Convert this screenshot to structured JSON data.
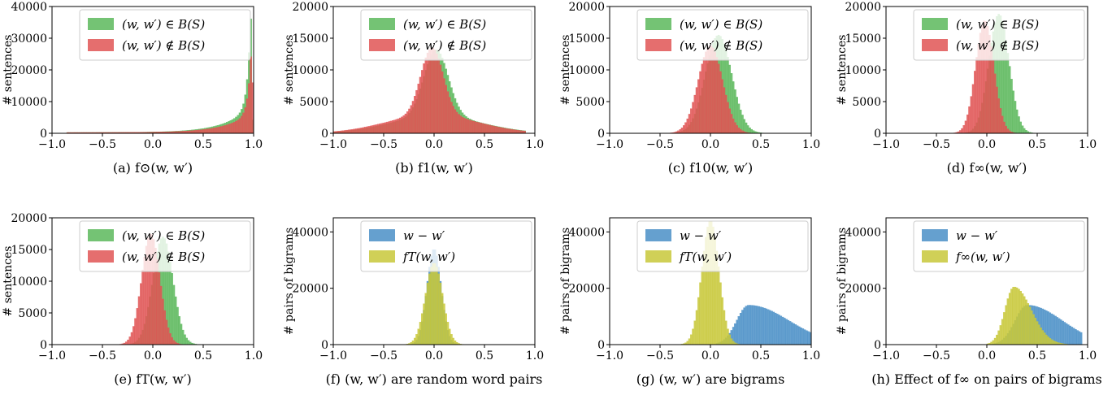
{
  "figure": {
    "panels": [
      {
        "id": "a",
        "caption": "(a) f⊙(w, w′)",
        "ylabel": "# sentences",
        "yticks": [
          0,
          10000,
          20000,
          30000,
          40000
        ],
        "ylim": [
          0,
          40000
        ],
        "xticks": [
          "−1.0",
          "−0.5",
          "0.0",
          "0.5",
          "1.0"
        ],
        "xlim": [
          -1,
          1
        ],
        "series": [
          {
            "name": "(w, w′) ∈ B(S)",
            "color": "#5cb85c",
            "kind": "skew",
            "mode": 0.97,
            "peak": 37500,
            "width": 0.3,
            "min": -0.85,
            "max": 1.0
          },
          {
            "name": "(w, w′) ∉ B(S)",
            "color": "#e05555",
            "kind": "skew",
            "mode": 0.98,
            "peak": 29000,
            "width": 0.3,
            "min": -0.85,
            "max": 1.0
          }
        ]
      },
      {
        "id": "b",
        "caption": "(b) f1(w, w′)",
        "ylabel": "# sentences",
        "yticks": [
          0,
          5000,
          10000,
          15000,
          20000
        ],
        "ylim": [
          0,
          20000
        ],
        "xticks": [
          "−1.0",
          "−0.5",
          "0.0",
          "0.5",
          "1.0"
        ],
        "xlim": [
          -1,
          1
        ],
        "series": [
          {
            "name": "(w, w′) ∈ B(S)",
            "color": "#5cb85c",
            "kind": "peakwide",
            "center": 0.02,
            "peak": 13200,
            "width": 0.12,
            "shoulder": 2700,
            "swidth": 0.45,
            "min": -1.0,
            "max": 0.9
          },
          {
            "name": "(w, w′) ∉ B(S)",
            "color": "#e05555",
            "kind": "peakwide",
            "center": -0.02,
            "peak": 13500,
            "width": 0.11,
            "shoulder": 2900,
            "swidth": 0.45,
            "min": -1.0,
            "max": 0.9
          }
        ]
      },
      {
        "id": "c",
        "caption": "(c) f10(w, w′)",
        "ylabel": "# sentences",
        "yticks": [
          0,
          5000,
          10000,
          15000,
          20000
        ],
        "ylim": [
          0,
          20000
        ],
        "xticks": [
          "−1.0",
          "−0.5",
          "0.0",
          "0.5",
          "1.0"
        ],
        "xlim": [
          -1,
          1
        ],
        "series": [
          {
            "name": "(w, w′) ∈ B(S)",
            "color": "#5cb85c",
            "kind": "gauss",
            "center": 0.08,
            "peak": 15500,
            "width": 0.13,
            "min": -0.5,
            "max": 0.55
          },
          {
            "name": "(w, w′) ∉ B(S)",
            "color": "#e05555",
            "kind": "gauss",
            "center": 0.0,
            "peak": 13800,
            "width": 0.12,
            "min": -0.5,
            "max": 0.55
          }
        ]
      },
      {
        "id": "d",
        "caption": "(d) f∞(w, w′)",
        "ylabel": "# sentences",
        "yticks": [
          0,
          5000,
          10000,
          15000,
          20000
        ],
        "ylim": [
          0,
          20000
        ],
        "xticks": [
          "−1.0",
          "−0.5",
          "0.0",
          "0.5",
          "1.0"
        ],
        "xlim": [
          -1,
          1
        ],
        "series": [
          {
            "name": "(w, w′) ∈ B(S)",
            "color": "#5cb85c",
            "kind": "gauss",
            "center": 0.12,
            "peak": 18800,
            "width": 0.1,
            "min": -0.4,
            "max": 0.5
          },
          {
            "name": "(w, w′) ∉ B(S)",
            "color": "#e05555",
            "kind": "gauss",
            "center": -0.02,
            "peak": 17800,
            "width": 0.09,
            "min": -0.45,
            "max": 0.45
          }
        ]
      },
      {
        "id": "e",
        "caption": "(e) fT(w, w′)",
        "ylabel": "# sentences",
        "yticks": [
          0,
          5000,
          10000,
          15000,
          20000
        ],
        "ylim": [
          0,
          20000
        ],
        "xticks": [
          "−1.0",
          "−0.5",
          "0.0",
          "0.5",
          "1.0"
        ],
        "xlim": [
          -1,
          1
        ],
        "series": [
          {
            "name": "(w, w′) ∈ B(S)",
            "color": "#5cb85c",
            "kind": "gauss",
            "center": 0.1,
            "peak": 17000,
            "width": 0.1,
            "min": -0.4,
            "max": 0.5
          },
          {
            "name": "(w, w′) ∉ B(S)",
            "color": "#e05555",
            "kind": "gauss",
            "center": -0.02,
            "peak": 17500,
            "width": 0.09,
            "min": -0.45,
            "max": 0.45
          }
        ]
      },
      {
        "id": "f",
        "caption": "(f) (w, w′) are random word pairs",
        "ylabel": "# pairs of bigrams",
        "yticks": [
          0,
          20000,
          40000
        ],
        "ylim": [
          0,
          45000
        ],
        "xticks": [
          "−1.0",
          "−0.5",
          "0.0",
          "0.5",
          "1.0"
        ],
        "xlim": [
          -1,
          1
        ],
        "series": [
          {
            "name": "w − w′",
            "color": "#4a8fc7",
            "kind": "gauss",
            "center": 0.0,
            "peak": 34000,
            "width": 0.07,
            "min": -0.35,
            "max": 0.35
          },
          {
            "name": "fT(w, w′)",
            "color": "#c8c83a",
            "kind": "gauss",
            "center": 0.0,
            "peak": 29000,
            "width": 0.085,
            "min": -0.4,
            "max": 0.4
          }
        ]
      },
      {
        "id": "g",
        "caption": "(g) (w, w′) are bigrams",
        "ylabel": "# pairs of bigrams",
        "yticks": [
          0,
          20000,
          40000
        ],
        "ylim": [
          0,
          45000
        ],
        "xticks": [
          "−1.0",
          "−0.5",
          "0.0",
          "0.5",
          "1.0"
        ],
        "xlim": [
          -1,
          1
        ],
        "series": [
          {
            "name": "w − w′",
            "color": "#4a8fc7",
            "kind": "skewright",
            "center": 0.38,
            "peak": 14000,
            "left": 0.12,
            "right": 0.4,
            "min": 0.05,
            "max": 1.0
          },
          {
            "name": "fT(w, w′)",
            "color": "#c8c83a",
            "kind": "gauss",
            "center": 0.0,
            "peak": 44000,
            "width": 0.085,
            "min": -0.4,
            "max": 0.35
          }
        ]
      },
      {
        "id": "h",
        "caption": "(h) Effect of f∞ on pairs of bigrams",
        "ylabel": "# pairs of bigrams",
        "yticks": [
          0,
          20000,
          40000
        ],
        "ylim": [
          0,
          45000
        ],
        "xticks": [
          "−1.0",
          "−0.5",
          "0.0",
          "0.5",
          "1.0"
        ],
        "xlim": [
          -1,
          1
        ],
        "series": [
          {
            "name": "w − w′",
            "color": "#4a8fc7",
            "kind": "skewright",
            "center": 0.4,
            "peak": 14000,
            "left": 0.12,
            "right": 0.35,
            "min": 0.05,
            "max": 0.95
          },
          {
            "name": "f∞(w, w′)",
            "color": "#c8c83a",
            "kind": "skewright",
            "center": 0.27,
            "peak": 20500,
            "left": 0.09,
            "right": 0.17,
            "min": 0.0,
            "max": 0.8
          }
        ]
      }
    ]
  },
  "chart_data": [
    {
      "type": "bar",
      "title": "",
      "xlabel": "",
      "ylabel": "# sentences",
      "xlim": [
        -1,
        1
      ],
      "ylim": [
        0,
        40000
      ],
      "x": [
        -0.8,
        -0.5,
        -0.2,
        0.0,
        0.2,
        0.4,
        0.6,
        0.8,
        0.9,
        0.95,
        0.98,
        1.0
      ],
      "series": [
        {
          "name": "(w, w′) ∈ B(S)",
          "values": [
            0,
            200,
            500,
            800,
            1200,
            1800,
            2800,
            5500,
            10000,
            22000,
            37500,
            0
          ]
        },
        {
          "name": "(w, w′) ∉ B(S)",
          "values": [
            0,
            200,
            500,
            800,
            1200,
            1800,
            2700,
            5000,
            9500,
            20000,
            29000,
            0
          ]
        }
      ]
    },
    {
      "type": "bar",
      "title": "",
      "xlabel": "",
      "ylabel": "# sentences",
      "xlim": [
        -1,
        1
      ],
      "ylim": [
        0,
        20000
      ],
      "x": [
        -1.0,
        -0.75,
        -0.5,
        -0.25,
        0.0,
        0.25,
        0.5,
        0.75,
        0.9
      ],
      "series": [
        {
          "name": "(w, w′) ∈ B(S)",
          "values": [
            0,
            400,
            1500,
            3000,
            13000,
            3000,
            1700,
            500,
            0
          ]
        },
        {
          "name": "(w, w′) ∉ B(S)",
          "values": [
            0,
            500,
            1700,
            3200,
            13500,
            2800,
            1500,
            400,
            0
          ]
        }
      ]
    },
    {
      "type": "bar",
      "title": "",
      "xlabel": "",
      "ylabel": "# sentences",
      "xlim": [
        -1,
        1
      ],
      "ylim": [
        0,
        20000
      ],
      "x": [
        -0.5,
        -0.25,
        0.0,
        0.08,
        0.25,
        0.5
      ],
      "series": [
        {
          "name": "(w, w′) ∈ B(S)",
          "values": [
            0,
            2200,
            12000,
            15500,
            6000,
            0
          ]
        },
        {
          "name": "(w, w′) ∉ B(S)",
          "values": [
            0,
            3500,
            13800,
            11000,
            2000,
            0
          ]
        }
      ]
    },
    {
      "type": "bar",
      "title": "",
      "xlabel": "",
      "ylabel": "# sentences",
      "xlim": [
        -1,
        1
      ],
      "ylim": [
        0,
        20000
      ],
      "x": [
        -0.4,
        -0.2,
        -0.02,
        0.12,
        0.3,
        0.5
      ],
      "series": [
        {
          "name": "(w, w′) ∈ B(S)",
          "values": [
            0,
            1000,
            8000,
            18800,
            3500,
            0
          ]
        },
        {
          "name": "(w, w′) ∉ B(S)",
          "values": [
            0,
            5500,
            17800,
            6500,
            300,
            0
          ]
        }
      ]
    },
    {
      "type": "bar",
      "title": "",
      "xlabel": "",
      "ylabel": "# sentences",
      "xlim": [
        -1,
        1
      ],
      "ylim": [
        0,
        20000
      ],
      "x": [
        -0.4,
        -0.2,
        -0.02,
        0.1,
        0.3,
        0.5
      ],
      "series": [
        {
          "name": "(w, w′) ∈ B(S)",
          "values": [
            0,
            1500,
            9000,
            17000,
            3500,
            0
          ]
        },
        {
          "name": "(w, w′) ∉ B(S)",
          "values": [
            0,
            5500,
            17500,
            8500,
            500,
            0
          ]
        }
      ]
    },
    {
      "type": "bar",
      "title": "",
      "xlabel": "",
      "ylabel": "# pairs of bigrams",
      "xlim": [
        -1,
        1
      ],
      "ylim": [
        0,
        45000
      ],
      "x": [
        -0.3,
        -0.15,
        0.0,
        0.15,
        0.3
      ],
      "series": [
        {
          "name": "w − w′",
          "values": [
            0,
            3500,
            34000,
            3500,
            0
          ]
        },
        {
          "name": "fT(w, w′)",
          "values": [
            0,
            6000,
            29000,
            6000,
            0
          ]
        }
      ]
    },
    {
      "type": "bar",
      "title": "",
      "xlabel": "",
      "ylabel": "# pairs of bigrams",
      "xlim": [
        -1,
        1
      ],
      "ylim": [
        0,
        45000
      ],
      "x": [
        -0.4,
        -0.2,
        0.0,
        0.2,
        0.4,
        0.6,
        0.8,
        1.0
      ],
      "series": [
        {
          "name": "w − w′",
          "values": [
            0,
            0,
            0,
            3500,
            14000,
            11500,
            6000,
            0
          ]
        },
        {
          "name": "fT(w, w′)",
          "values": [
            0,
            2500,
            44000,
            3000,
            0,
            0,
            0,
            0
          ]
        }
      ]
    },
    {
      "type": "bar",
      "title": "",
      "xlabel": "",
      "ylabel": "# pairs of bigrams",
      "xlim": [
        -1,
        1
      ],
      "ylim": [
        0,
        45000
      ],
      "x": [
        0.0,
        0.1,
        0.27,
        0.4,
        0.6,
        0.8,
        0.95
      ],
      "series": [
        {
          "name": "w − w′",
          "values": [
            0,
            1000,
            9500,
            14000,
            9500,
            3500,
            0
          ]
        },
        {
          "name": "f∞(w, w′)",
          "values": [
            0,
            9000,
            20500,
            14000,
            3500,
            500,
            0
          ]
        }
      ]
    }
  ]
}
